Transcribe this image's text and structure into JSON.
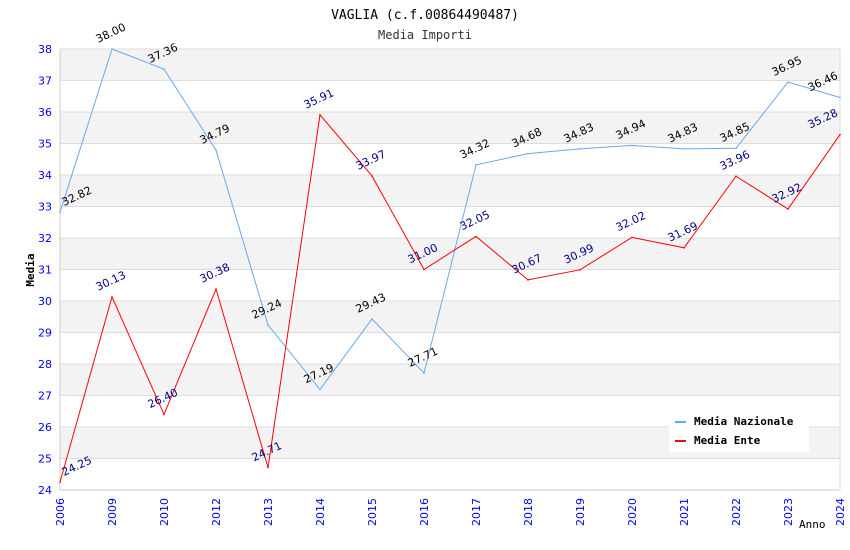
{
  "chart_data": {
    "type": "line",
    "title": "VAGLIA (c.f.00864490487)",
    "subtitle": "Media Importi",
    "xlabel": "Anno",
    "ylabel": "Media",
    "ylim": [
      24,
      38
    ],
    "yticks": [
      "24",
      "25",
      "26",
      "27",
      "28",
      "29",
      "30",
      "31",
      "32",
      "33",
      "34",
      "35",
      "36",
      "37",
      "38"
    ],
    "categories": [
      "2006",
      "2009",
      "2010",
      "2012",
      "2013",
      "2014",
      "2015",
      "2016",
      "2017",
      "2018",
      "2019",
      "2020",
      "2021",
      "2022",
      "2023",
      "2024"
    ],
    "legend_position": "top-right",
    "series": [
      {
        "name": "Media Nazionale",
        "color": "#66aaee",
        "label_color": "#000000",
        "values": [
          32.82,
          38.0,
          37.36,
          34.79,
          29.24,
          27.19,
          29.43,
          27.71,
          34.32,
          34.68,
          34.83,
          34.94,
          34.83,
          34.85,
          36.95,
          36.46
        ],
        "labels": [
          "32.82",
          "38.00",
          "37.36",
          "34.79",
          "29.24",
          "27.19",
          "29.43",
          "27.71",
          "34.32",
          "34.68",
          "34.83",
          "34.94",
          "34.83",
          "34.85",
          "36.95",
          "36.46"
        ]
      },
      {
        "name": "Media Ente",
        "color": "#ff0000",
        "label_color": "#000080",
        "values": [
          24.25,
          30.13,
          26.4,
          30.38,
          24.71,
          35.91,
          33.97,
          31.0,
          32.05,
          30.67,
          30.99,
          32.02,
          31.69,
          33.96,
          32.92,
          35.28
        ],
        "labels": [
          "24.25",
          "30.13",
          "26.40",
          "30.38",
          "24.71",
          "35.91",
          "33.97",
          "31.00",
          "32.05",
          "30.67",
          "30.99",
          "32.02",
          "31.69",
          "33.96",
          "32.92",
          "35.28"
        ]
      }
    ]
  }
}
